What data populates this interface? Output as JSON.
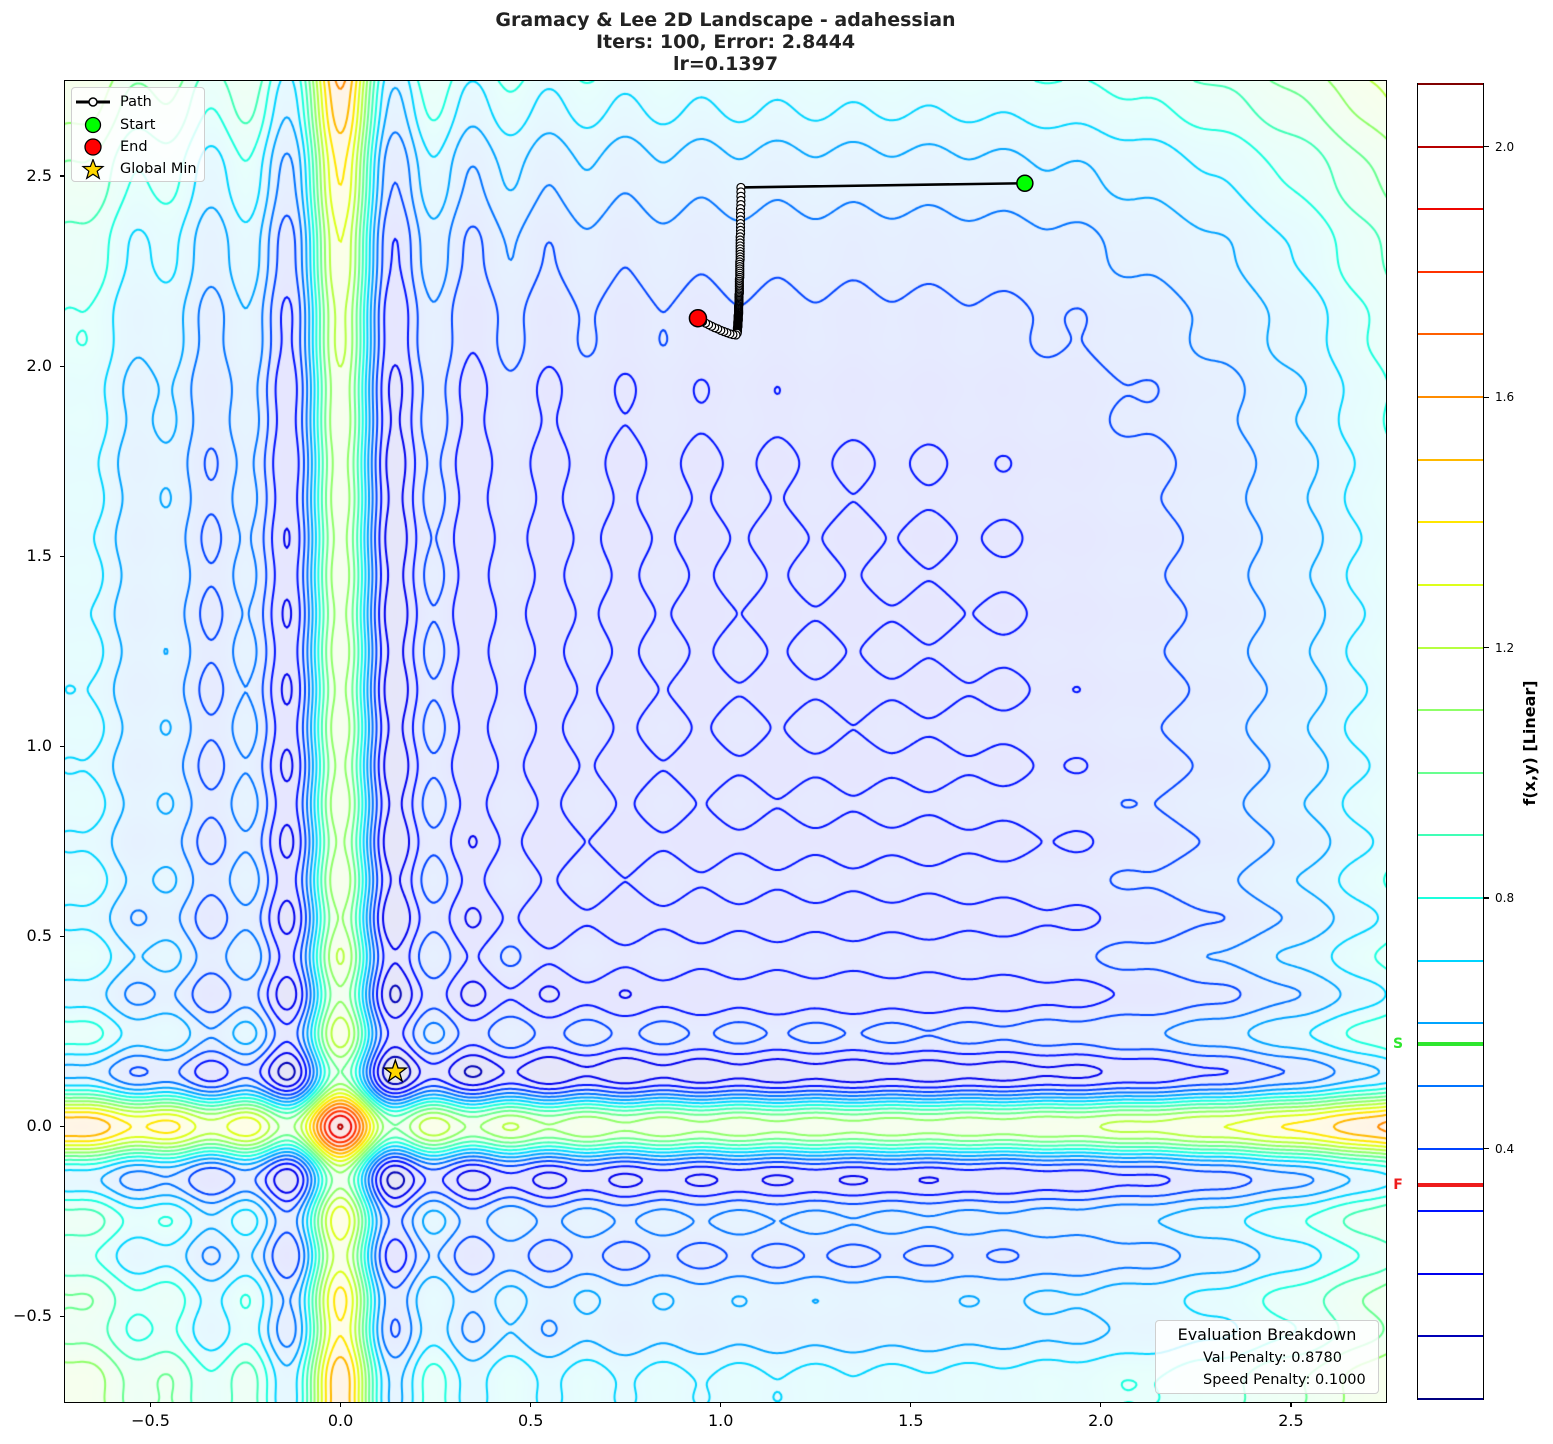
{
  "chart_data": {
    "type": "contour",
    "title_lines": [
      "Gramacy & Lee 2D Landscape - adahessian",
      "Iters: 100, Error: 2.8444",
      "lr=0.1397"
    ],
    "xlabel": "",
    "ylabel": "",
    "xlim": [
      -0.725,
      2.75
    ],
    "ylim": [
      -0.725,
      2.75
    ],
    "grid": false,
    "x_ticks": [
      {
        "value": -0.5,
        "label": "−0.5"
      },
      {
        "value": 0.0,
        "label": "0.0"
      },
      {
        "value": 0.5,
        "label": "0.5"
      },
      {
        "value": 1.0,
        "label": "1.0"
      },
      {
        "value": 1.5,
        "label": "1.5"
      },
      {
        "value": 2.0,
        "label": "2.0"
      },
      {
        "value": 2.5,
        "label": "2.5"
      }
    ],
    "y_ticks": [
      {
        "value": 2.5,
        "label": "2.5"
      },
      {
        "value": 2.0,
        "label": "2.0"
      },
      {
        "value": 1.5,
        "label": "1.5"
      },
      {
        "value": 1.0,
        "label": "1.0"
      },
      {
        "value": 0.5,
        "label": "0.5"
      },
      {
        "value": 0.0,
        "label": "0.0"
      },
      {
        "value": -0.5,
        "label": "−0.5"
      }
    ],
    "contour_levels": [
      {
        "value": 0.0,
        "color": "#000080"
      },
      {
        "value": 0.1,
        "color": "#0000b7"
      },
      {
        "value": 0.2,
        "color": "#0000ee"
      },
      {
        "value": 0.3,
        "color": "#0012ff"
      },
      {
        "value": 0.4,
        "color": "#0043ff"
      },
      {
        "value": 0.5,
        "color": "#0073ff"
      },
      {
        "value": 0.6,
        "color": "#00a4ff"
      },
      {
        "value": 0.7,
        "color": "#00d4ff"
      },
      {
        "value": 0.8,
        "color": "#1affdd"
      },
      {
        "value": 0.9,
        "color": "#40ffb6"
      },
      {
        "value": 1.0,
        "color": "#68ff8f"
      },
      {
        "value": 1.1,
        "color": "#8fff68"
      },
      {
        "value": 1.2,
        "color": "#b6ff40"
      },
      {
        "value": 1.3,
        "color": "#ddff1a"
      },
      {
        "value": 1.4,
        "color": "#ffe600"
      },
      {
        "value": 1.5,
        "color": "#ffb900"
      },
      {
        "value": 1.6,
        "color": "#ff8c00"
      },
      {
        "value": 1.7,
        "color": "#ff5f00"
      },
      {
        "value": 1.8,
        "color": "#ff3200"
      },
      {
        "value": 1.9,
        "color": "#ee0500"
      },
      {
        "value": 2.0,
        "color": "#b70000"
      },
      {
        "value": 2.1,
        "color": "#800000"
      }
    ],
    "colorbar": {
      "label": "f(x,y) [Linear]",
      "vmin": 0.0,
      "vmax": 2.1,
      "ticks": [
        {
          "value": 0.4,
          "label": "0.4"
        },
        {
          "value": 0.8,
          "label": "0.8"
        },
        {
          "value": 1.2,
          "label": "1.2"
        },
        {
          "value": 1.6,
          "label": "1.6"
        },
        {
          "value": 2.0,
          "label": "2.0"
        }
      ],
      "markers": [
        {
          "label": "S",
          "value": 0.567,
          "color": "#2ee62e"
        },
        {
          "label": "F",
          "value": 0.342,
          "color": "#ee1c1c"
        }
      ]
    },
    "legend": {
      "position": "upper left",
      "items": [
        {
          "label": "Path",
          "marker": "line-with-circle",
          "color": "#000000",
          "marker_fill": "#ffffff"
        },
        {
          "label": "Start",
          "marker": "circle",
          "color": "#00ff00"
        },
        {
          "label": "End",
          "marker": "circle",
          "color": "#ff0000"
        },
        {
          "label": "Global Min",
          "marker": "star",
          "color": "#ffd700"
        }
      ]
    },
    "series": {
      "start": {
        "name": "Start",
        "x": 1.8,
        "y": 2.481,
        "color": "#00ff00"
      },
      "end": {
        "name": "End",
        "x": 0.94,
        "y": 2.126,
        "color": "#ff0000"
      },
      "global_min": {
        "name": "Global Min",
        "x": 0.144,
        "y": 0.144,
        "color": "#ffd700"
      },
      "path": {
        "name": "Path",
        "points": [
          [
            1.8,
            2.481
          ],
          [
            1.053,
            2.47
          ],
          [
            1.053,
            2.4582
          ],
          [
            1.053,
            2.4467
          ],
          [
            1.053,
            2.4356
          ],
          [
            1.053,
            2.4248
          ],
          [
            1.052,
            2.4142
          ],
          [
            1.052,
            2.404
          ],
          [
            1.052,
            2.3941
          ],
          [
            1.052,
            2.3844
          ],
          [
            1.052,
            2.375
          ],
          [
            1.052,
            2.3658
          ],
          [
            1.052,
            2.357
          ],
          [
            1.052,
            2.3483
          ],
          [
            1.051,
            2.3399
          ],
          [
            1.051,
            2.3318
          ],
          [
            1.051,
            2.3238
          ],
          [
            1.051,
            2.3161
          ],
          [
            1.051,
            2.3086
          ],
          [
            1.051,
            2.3013
          ],
          [
            1.051,
            2.2943
          ],
          [
            1.051,
            2.2874
          ],
          [
            1.051,
            2.2807
          ],
          [
            1.05,
            2.2742
          ],
          [
            1.05,
            2.2679
          ],
          [
            1.05,
            2.2618
          ],
          [
            1.05,
            2.2558
          ],
          [
            1.05,
            2.25
          ],
          [
            1.05,
            2.2444
          ],
          [
            1.05,
            2.2389
          ],
          [
            1.05,
            2.2335
          ],
          [
            1.049,
            2.2284
          ],
          [
            1.049,
            2.2233
          ],
          [
            1.049,
            2.2185
          ],
          [
            1.049,
            2.2137
          ],
          [
            1.049,
            2.2091
          ],
          [
            1.049,
            2.2046
          ],
          [
            1.049,
            2.2002
          ],
          [
            1.049,
            2.1959
          ],
          [
            1.049,
            2.1918
          ],
          [
            1.048,
            2.1878
          ],
          [
            1.048,
            2.1839
          ],
          [
            1.048,
            2.1801
          ],
          [
            1.048,
            2.1764
          ],
          [
            1.048,
            2.1729
          ],
          [
            1.048,
            2.1694
          ],
          [
            1.048,
            2.166
          ],
          [
            1.048,
            2.1627
          ],
          [
            1.047,
            2.1595
          ],
          [
            1.047,
            2.1564
          ],
          [
            1.047,
            2.1534
          ],
          [
            1.047,
            2.1505
          ],
          [
            1.047,
            2.1476
          ],
          [
            1.047,
            2.1448
          ],
          [
            1.047,
            2.1421
          ],
          [
            1.047,
            2.1395
          ],
          [
            1.047,
            2.137
          ],
          [
            1.046,
            2.1345
          ],
          [
            1.046,
            2.1321
          ],
          [
            1.046,
            2.1297
          ],
          [
            1.046,
            2.1275
          ],
          [
            1.046,
            2.1253
          ],
          [
            1.046,
            2.1231
          ],
          [
            1.046,
            2.121
          ],
          [
            1.046,
            2.119
          ],
          [
            1.045,
            2.117
          ],
          [
            1.045,
            2.1151
          ],
          [
            1.045,
            2.1133
          ],
          [
            1.045,
            2.1114
          ],
          [
            1.045,
            2.1097
          ],
          [
            1.045,
            2.108
          ],
          [
            1.045,
            2.1063
          ],
          [
            1.045,
            2.1047
          ],
          [
            1.045,
            2.1031
          ],
          [
            1.044,
            2.1016
          ],
          [
            1.044,
            2.1001
          ],
          [
            1.044,
            2.0986
          ],
          [
            1.044,
            2.0972
          ],
          [
            1.044,
            2.0959
          ],
          [
            1.044,
            2.0946
          ],
          [
            1.044,
            2.0932
          ],
          [
            1.044,
            2.092
          ],
          [
            1.043,
            2.0908
          ],
          [
            1.043,
            2.0896
          ],
          [
            1.043,
            2.0884
          ],
          [
            1.043,
            2.0873
          ],
          [
            1.043,
            2.0863
          ],
          [
            1.04,
            2.082
          ],
          [
            1.032,
            2.083
          ],
          [
            1.024,
            2.085
          ],
          [
            1.016,
            2.088
          ],
          [
            1.008,
            2.091
          ],
          [
            1.0,
            2.094
          ],
          [
            0.992,
            2.098
          ],
          [
            0.984,
            2.101
          ],
          [
            0.976,
            2.105
          ],
          [
            0.968,
            2.109
          ],
          [
            0.96,
            2.113
          ],
          [
            0.952,
            2.117
          ],
          [
            0.946,
            2.121
          ],
          [
            0.94,
            2.126
          ]
        ]
      }
    },
    "annotations": {
      "evaluation_box": {
        "title": "Evaluation Breakdown",
        "lines": [
          {
            "label": "Val Penalty",
            "value": "0.8780",
            "text": "Val Penalty: 0.8780"
          },
          {
            "label": "Speed Penalty",
            "value": "0.1000",
            "text": "Speed Penalty: 0.1000"
          }
        ]
      }
    }
  }
}
